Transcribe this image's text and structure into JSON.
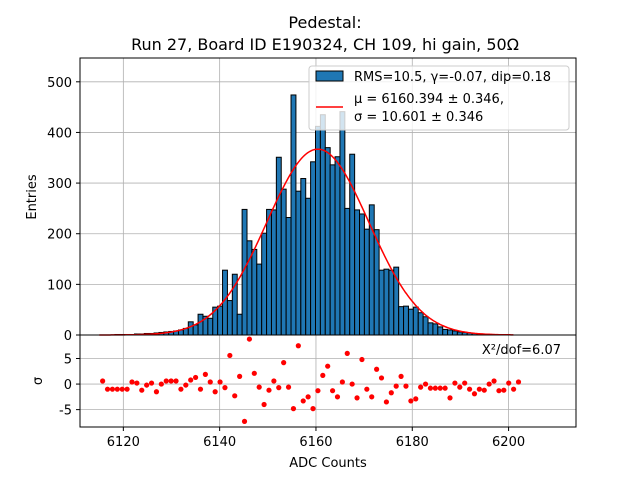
{
  "chart_data": [
    {
      "type": "bar",
      "title_line1": "Pedestal:",
      "title_line2": "Run 27, Board ID E190324, CH 109, hi gain, 50Ω",
      "ylabel": "Entries",
      "xlim": [
        6111,
        6214
      ],
      "ylim": [
        0,
        547
      ],
      "yticks": [
        0,
        100,
        200,
        300,
        400,
        500
      ],
      "grid": true,
      "legend_position": "top-right",
      "bin_start": 6115.2,
      "bin_width": 1.016,
      "values": [
        0,
        0,
        0,
        1,
        1,
        1,
        1,
        2,
        2,
        3,
        3,
        4,
        5,
        6,
        7,
        8,
        10,
        13,
        26,
        20,
        41,
        37,
        33,
        55,
        57,
        128,
        68,
        120,
        41,
        248,
        186,
        169,
        140,
        201,
        248,
        247,
        351,
        288,
        232,
        474,
        284,
        309,
        270,
        342,
        412,
        435,
        370,
        336,
        352,
        441,
        250,
        357,
        247,
        239,
        209,
        257,
        208,
        128,
        130,
        128,
        134,
        56,
        57,
        51,
        55,
        44,
        36,
        24,
        22,
        16,
        11,
        10,
        8,
        6,
        5,
        4,
        3,
        2,
        2,
        1,
        1,
        1
      ],
      "bar_color": "#1f77b4",
      "histogram_legend": "RMS=10.5, γ=-0.07, dip=0.18",
      "fit": {
        "type": "gaussian",
        "mu": 6160.394,
        "sigma": 10.601,
        "amplitude": 367,
        "range": [
          6115,
          6201
        ],
        "color": "#ff0000",
        "legend_line1": "μ = 6160.394 ± 0.346,",
        "legend_line2": "σ = 10.601 ± 0.346"
      }
    },
    {
      "type": "scatter",
      "xlabel": "ADC Counts",
      "ylabel": "σ",
      "xlim": [
        6111,
        6214
      ],
      "ylim": [
        -8.4,
        9.6
      ],
      "yticks": [
        -5,
        0,
        5
      ],
      "xticks": [
        6120,
        6140,
        6160,
        6180,
        6200
      ],
      "grid": true,
      "annotation": "X²/dof=6.07",
      "point_color": "#ff0000",
      "x_start": 6115.7,
      "x_step": 1.016,
      "residuals": [
        0.6,
        -1,
        -1,
        -1,
        -1,
        -1,
        0.4,
        0.2,
        -1.2,
        -0.2,
        0.2,
        -1.5,
        0,
        0.6,
        0.6,
        0.6,
        -1,
        -0.2,
        0.8,
        1.3,
        -1,
        1.9,
        0.4,
        -1.5,
        0.4,
        -0.7,
        5.6,
        -2.3,
        1.5,
        -7.3,
        8.8,
        2.1,
        -0.6,
        -4,
        -1.2,
        0.6,
        -0.7,
        4.2,
        -0.6,
        -4.8,
        7.5,
        -3.3,
        -2.5,
        -4.8,
        -1.3,
        1.7,
        3.5,
        -1.3,
        -2.5,
        0.4,
        6,
        0,
        -2.7,
        4.8,
        -1,
        -2.5,
        2.9,
        1.2,
        -3.5,
        -1.7,
        -0.4,
        1.5,
        -0.4,
        -3.3,
        -2.9,
        -0.6,
        0,
        -0.8,
        -0.8,
        -0.8,
        -0.8,
        -2.7,
        0.2,
        -0.6,
        0.2,
        -1,
        -1.9,
        -1,
        -1.2,
        0,
        0.6,
        -1.3,
        -1.2,
        0.2,
        -1,
        0.4
      ]
    }
  ]
}
